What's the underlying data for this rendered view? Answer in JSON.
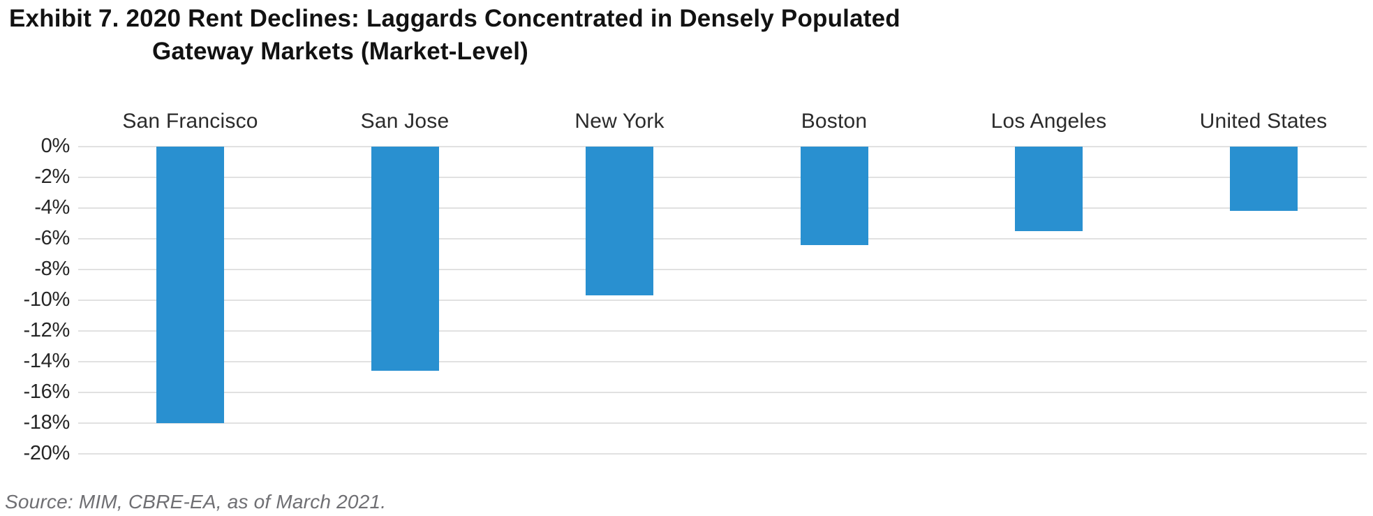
{
  "title": {
    "line1": "Exhibit 7. 2020 Rent Declines: Laggards Concentrated in Densely Populated",
    "line2": "Gateway Markets (Market-Level)"
  },
  "source": "Source: MIM, CBRE-EA, as of March 2021.",
  "colors": {
    "bar": "#2990d0",
    "gridline": "#e1e1e1",
    "title_text": "#121212",
    "axis_text": "#262626",
    "source_text": "#6f6f73"
  },
  "chart_data": {
    "type": "bar",
    "title": "Exhibit 7. 2020 Rent Declines: Laggards Concentrated in Densely Populated Gateway Markets (Market-Level)",
    "categories": [
      "San Francisco",
      "San Jose",
      "New York",
      "Boston",
      "Los Angeles",
      "United States"
    ],
    "values": [
      -18.0,
      -14.6,
      -9.7,
      -6.4,
      -5.5,
      -4.2
    ],
    "unit": "%",
    "xlabel": "",
    "ylabel": "",
    "ylim": [
      -20,
      0
    ],
    "y_tick_step": 2,
    "y_tick_labels": [
      "0%",
      "-2%",
      "-4%",
      "-6%",
      "-8%",
      "-10%",
      "-12%",
      "-14%",
      "-16%",
      "-18%",
      "-20%"
    ],
    "grid": "horizontal",
    "legend": "none",
    "category_label_position": "above-plot",
    "source": "Source: MIM, CBRE-EA, as of March 2021."
  }
}
